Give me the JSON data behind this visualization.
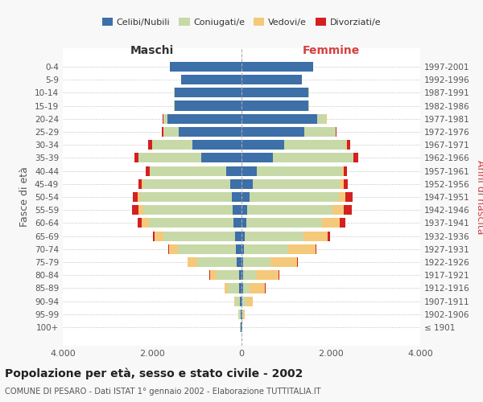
{
  "age_groups": [
    "100+",
    "95-99",
    "90-94",
    "85-89",
    "80-84",
    "75-79",
    "70-74",
    "65-69",
    "60-64",
    "55-59",
    "50-54",
    "45-49",
    "40-44",
    "35-39",
    "30-34",
    "25-29",
    "20-24",
    "15-19",
    "10-14",
    "5-9",
    "0-4"
  ],
  "birth_years": [
    "≤ 1901",
    "1902-1906",
    "1907-1911",
    "1912-1916",
    "1917-1921",
    "1922-1926",
    "1927-1931",
    "1932-1936",
    "1937-1941",
    "1942-1946",
    "1947-1951",
    "1952-1956",
    "1957-1961",
    "1962-1966",
    "1967-1971",
    "1972-1976",
    "1977-1981",
    "1982-1986",
    "1987-1991",
    "1992-1996",
    "1997-2001"
  ],
  "male": {
    "celibi": [
      10,
      20,
      30,
      50,
      60,
      100,
      120,
      150,
      180,
      200,
      220,
      250,
      350,
      900,
      1100,
      1400,
      1650,
      1500,
      1500,
      1350,
      1600
    ],
    "coniugati": [
      20,
      50,
      120,
      250,
      500,
      900,
      1300,
      1600,
      1900,
      2000,
      2050,
      1950,
      1700,
      1400,
      900,
      350,
      100,
      10,
      5,
      2,
      2
    ],
    "vedovi": [
      5,
      10,
      20,
      80,
      150,
      200,
      200,
      200,
      150,
      100,
      60,
      30,
      10,
      5,
      5,
      5,
      2,
      0,
      0,
      0,
      0
    ],
    "divorziati": [
      0,
      0,
      0,
      0,
      5,
      10,
      20,
      30,
      100,
      150,
      100,
      80,
      80,
      100,
      80,
      20,
      5,
      0,
      0,
      0,
      0
    ]
  },
  "female": {
    "nubili": [
      10,
      15,
      20,
      30,
      30,
      40,
      50,
      80,
      100,
      130,
      180,
      250,
      350,
      700,
      950,
      1400,
      1700,
      1500,
      1500,
      1350,
      1600
    ],
    "coniugate": [
      10,
      30,
      80,
      150,
      300,
      600,
      1000,
      1300,
      1700,
      1900,
      2000,
      1950,
      1900,
      1800,
      1400,
      700,
      200,
      20,
      5,
      2,
      2
    ],
    "vedove": [
      5,
      30,
      150,
      350,
      500,
      600,
      600,
      550,
      400,
      250,
      150,
      80,
      30,
      10,
      5,
      5,
      2,
      0,
      0,
      0,
      0
    ],
    "divorziate": [
      0,
      0,
      0,
      5,
      10,
      20,
      30,
      50,
      130,
      180,
      150,
      100,
      80,
      100,
      80,
      30,
      10,
      0,
      0,
      0,
      0
    ]
  },
  "colors": {
    "celibi_nubili": "#3d6fa8",
    "coniugati": "#c8d9a8",
    "vedovi": "#f5c97a",
    "divorziati": "#d42020"
  },
  "title": "Popolazione per età, sesso e stato civile - 2002",
  "subtitle": "COMUNE DI PESARO - Dati ISTAT 1° gennaio 2002 - Elaborazione TUTTITALIA.IT",
  "xlim": 4000,
  "xlabel_left": "Maschi",
  "xlabel_right": "Femmine",
  "ylabel_left": "Fasce di età",
  "ylabel_right": "Anni di nascita",
  "xtick_labels": [
    "4.000",
    "2.000",
    "0",
    "2.000",
    "4.000"
  ],
  "xtick_values": [
    -4000,
    -2000,
    0,
    2000,
    4000
  ],
  "bg_color": "#f8f8f8",
  "plot_bg_color": "#ffffff"
}
